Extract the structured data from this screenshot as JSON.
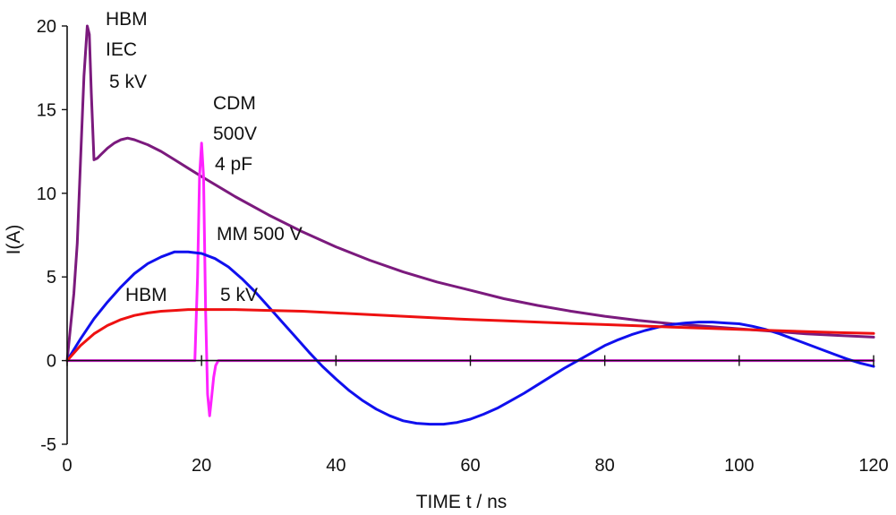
{
  "chart_data": {
    "type": "line",
    "title": "",
    "xlabel": "TIME t / ns",
    "ylabel": "I(A)",
    "xlim": [
      0,
      120
    ],
    "ylim": [
      -5,
      20
    ],
    "xticks": [
      0,
      20,
      40,
      60,
      80,
      100,
      120
    ],
    "yticks": [
      -5,
      0,
      5,
      10,
      15,
      20
    ],
    "grid": false,
    "legend": "none",
    "annotations": [
      {
        "id": "hbm-iec",
        "lines": [
          "HBM",
          "IEC",
          " 5 kV"
        ]
      },
      {
        "id": "cdm",
        "lines": [
          "CDM",
          "500V",
          " 4 pF"
        ]
      },
      {
        "id": "mm",
        "lines": [
          "MM 500 V"
        ]
      },
      {
        "id": "hbm",
        "lines": [
          "HBM",
          "5 kV"
        ]
      }
    ],
    "series": [
      {
        "color": "#7b1a7d",
        "x": [
          0,
          1,
          1.5,
          2,
          2.5,
          3,
          3.3,
          3.6,
          4,
          4.5,
          5,
          6,
          7,
          8,
          9,
          10,
          12,
          14,
          16,
          18,
          20,
          25,
          30,
          35,
          40,
          45,
          50,
          55,
          60,
          65,
          70,
          75,
          80,
          85,
          90,
          95,
          100,
          105,
          110,
          115,
          120
        ],
        "y": [
          0,
          4,
          7,
          12,
          17,
          20,
          19.5,
          16,
          12,
          12.1,
          12.3,
          12.7,
          13.0,
          13.2,
          13.3,
          13.2,
          12.9,
          12.5,
          12.0,
          11.5,
          11.0,
          9.8,
          8.7,
          7.7,
          6.8,
          6.0,
          5.3,
          4.7,
          4.2,
          3.7,
          3.3,
          2.95,
          2.65,
          2.4,
          2.2,
          2.05,
          1.9,
          1.75,
          1.6,
          1.5,
          1.4
        ]
      },
      {
        "color": "#ff22ff",
        "x": [
          0,
          19.0,
          19.4,
          19.7,
          20.0,
          20.3,
          20.6,
          20.9,
          21.2,
          21.5,
          21.8,
          22.1,
          22.5,
          23,
          30,
          40,
          60,
          80,
          100,
          120
        ],
        "y": [
          0,
          0,
          5.0,
          11.0,
          13.0,
          11.0,
          3.0,
          -2.0,
          -3.3,
          -2.2,
          -1.0,
          -0.3,
          0,
          0,
          0,
          0,
          0,
          0,
          0,
          0
        ]
      },
      {
        "color": "#1010ee",
        "x": [
          0,
          2,
          4,
          6,
          8,
          10,
          12,
          14,
          16,
          18,
          20,
          22,
          24,
          26,
          28,
          30,
          32,
          34,
          36,
          38,
          40,
          42,
          44,
          46,
          48,
          50,
          52,
          54,
          56,
          58,
          60,
          62,
          64,
          66,
          68,
          70,
          72,
          74,
          76,
          78,
          80,
          82,
          84,
          86,
          88,
          90,
          92,
          94,
          96,
          98,
          100,
          102,
          104,
          106,
          108,
          110,
          112,
          114,
          116,
          118,
          120
        ],
        "y": [
          0,
          1.3,
          2.5,
          3.5,
          4.4,
          5.2,
          5.8,
          6.2,
          6.5,
          6.5,
          6.4,
          6.1,
          5.6,
          4.9,
          4.1,
          3.2,
          2.3,
          1.4,
          0.5,
          -0.35,
          -1.1,
          -1.8,
          -2.4,
          -2.9,
          -3.3,
          -3.6,
          -3.75,
          -3.8,
          -3.8,
          -3.7,
          -3.5,
          -3.2,
          -2.85,
          -2.4,
          -1.95,
          -1.45,
          -0.95,
          -0.45,
          0,
          0.45,
          0.9,
          1.25,
          1.55,
          1.8,
          2.0,
          2.15,
          2.25,
          2.3,
          2.3,
          2.25,
          2.2,
          2.05,
          1.85,
          1.6,
          1.3,
          1.0,
          0.7,
          0.4,
          0.1,
          -0.15,
          -0.35
        ]
      },
      {
        "color": "#ee1111",
        "x": [
          0,
          2,
          4,
          6,
          8,
          10,
          12,
          14,
          16,
          18,
          20,
          25,
          30,
          35,
          40,
          45,
          50,
          55,
          60,
          65,
          70,
          75,
          80,
          85,
          90,
          95,
          100,
          105,
          110,
          115,
          120
        ],
        "y": [
          0,
          0.9,
          1.6,
          2.1,
          2.45,
          2.7,
          2.85,
          2.95,
          3.0,
          3.05,
          3.05,
          3.05,
          3.0,
          2.95,
          2.85,
          2.75,
          2.65,
          2.55,
          2.45,
          2.38,
          2.3,
          2.22,
          2.15,
          2.08,
          2.0,
          1.93,
          1.87,
          1.8,
          1.73,
          1.67,
          1.62
        ]
      }
    ]
  }
}
